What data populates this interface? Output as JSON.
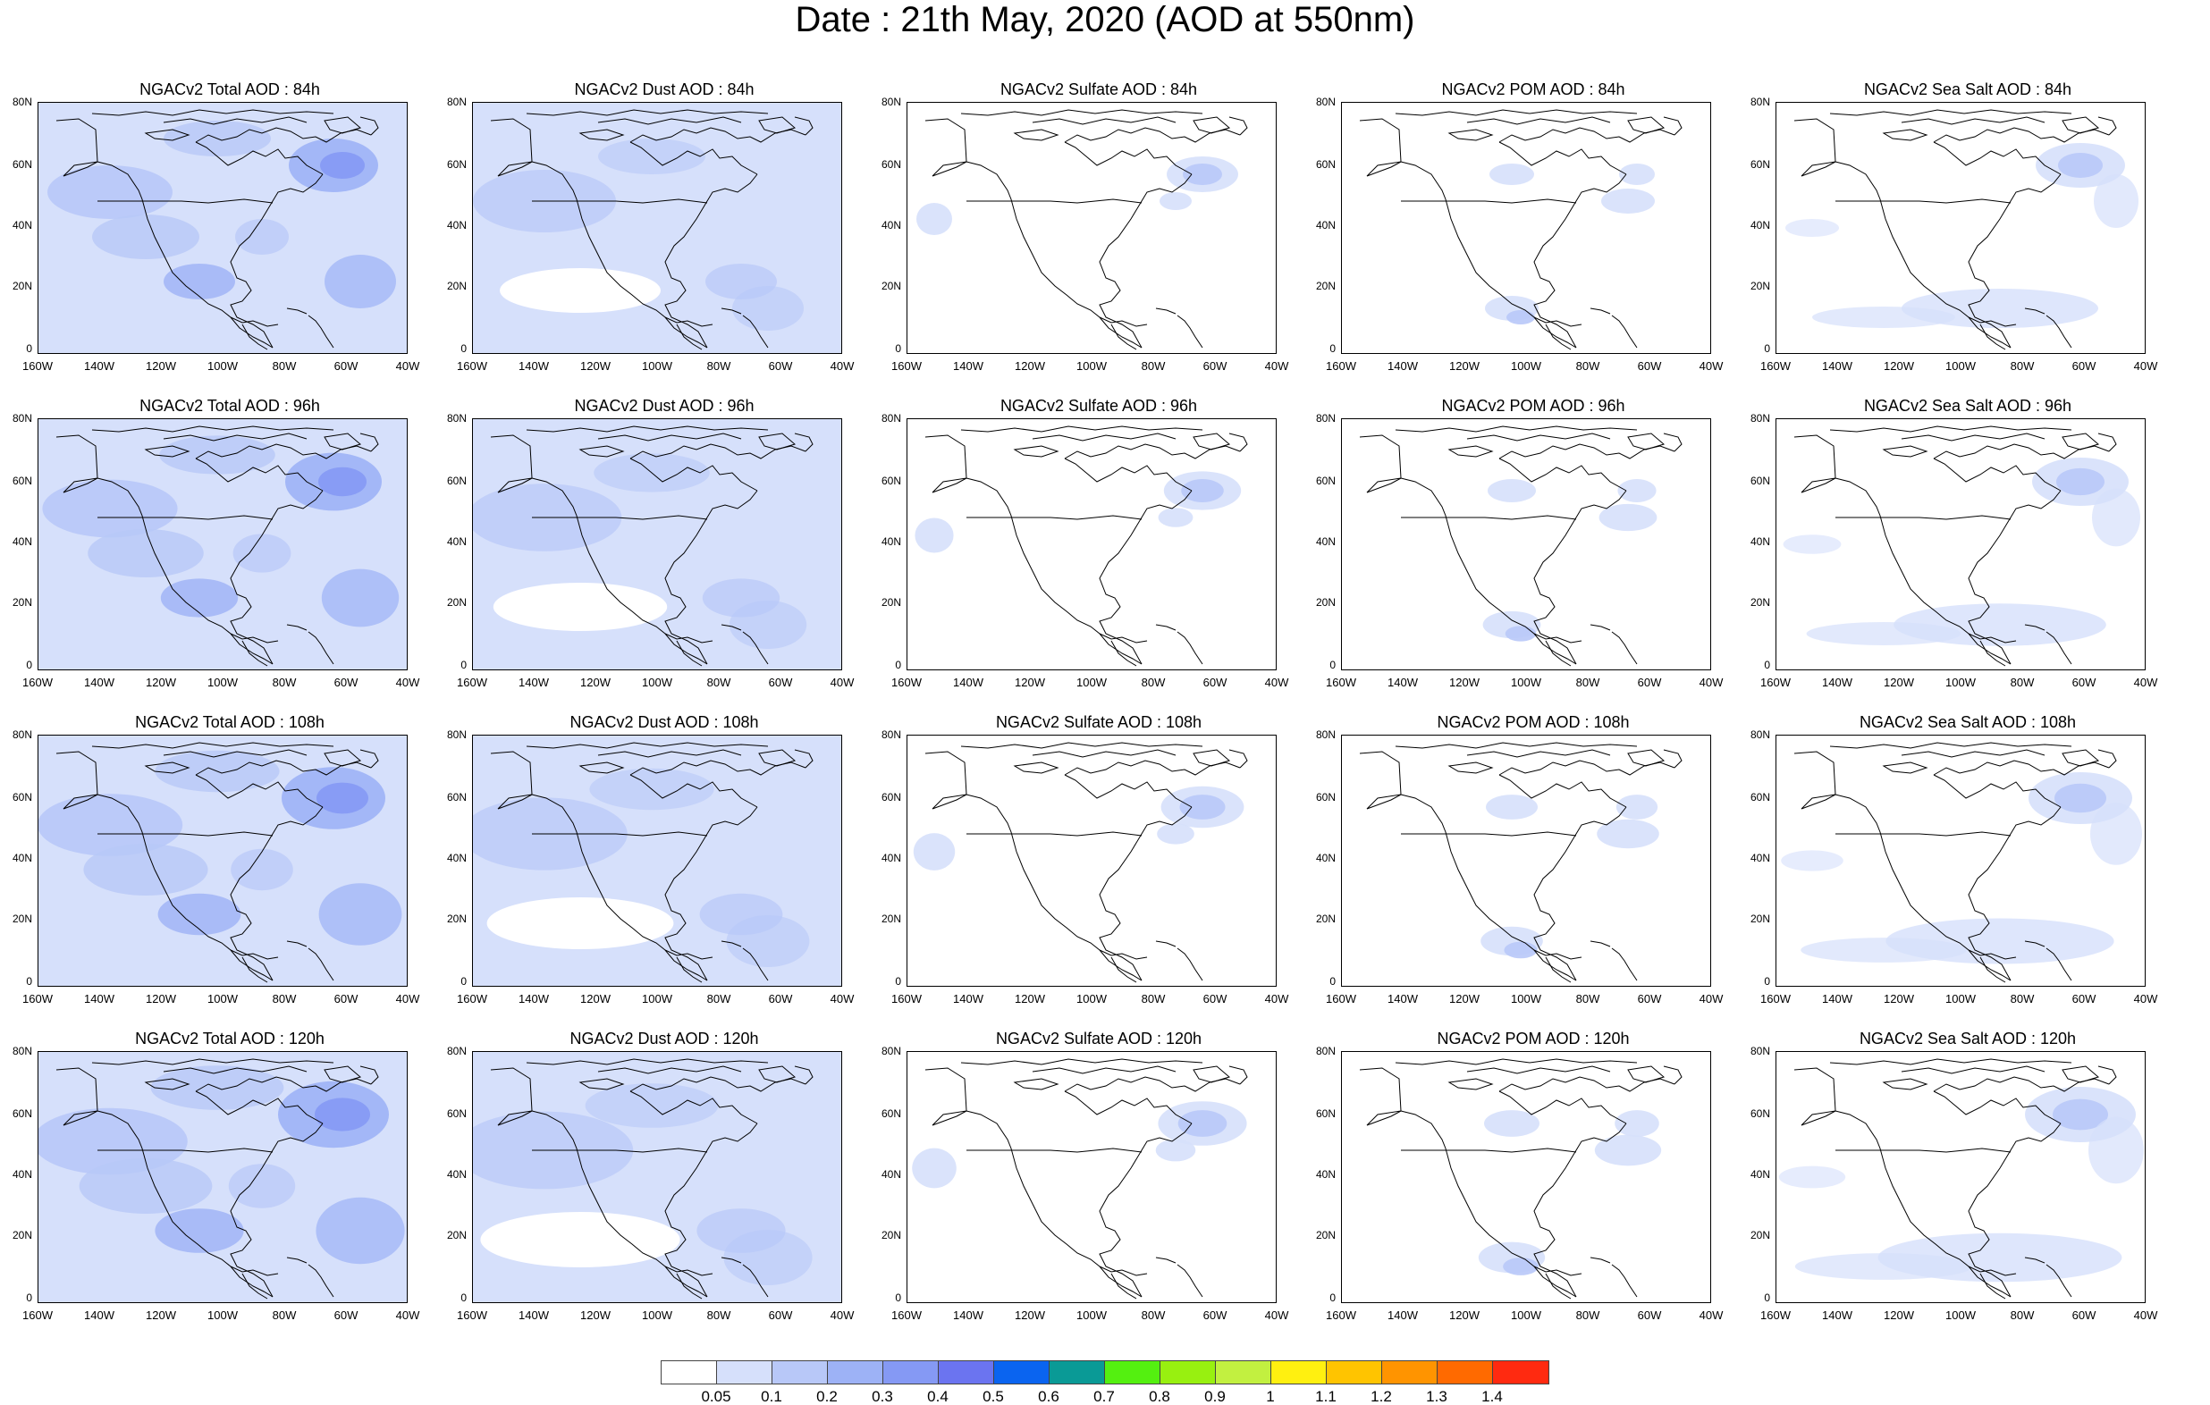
{
  "title": "Date : 21th May, 2020 (AOD at 550nm)",
  "lat_labels": [
    "80N",
    "60N",
    "40N",
    "20N",
    "0"
  ],
  "lon_labels": [
    "160W",
    "140W",
    "120W",
    "100W",
    "80W",
    "60W",
    "40W"
  ],
  "panels": [
    [
      "NGACv2 Total AOD : 84h",
      "NGACv2 Dust AOD : 84h",
      "NGACv2 Sulfate AOD : 84h",
      "NGACv2 POM AOD : 84h",
      "NGACv2 Sea Salt AOD : 84h"
    ],
    [
      "NGACv2 Total AOD : 96h",
      "NGACv2 Dust AOD : 96h",
      "NGACv2 Sulfate AOD : 96h",
      "NGACv2 POM AOD : 96h",
      "NGACv2 Sea Salt AOD : 96h"
    ],
    [
      "NGACv2 Total AOD : 108h",
      "NGACv2 Dust AOD : 108h",
      "NGACv2 Sulfate AOD : 108h",
      "NGACv2 POM AOD : 108h",
      "NGACv2 Sea Salt AOD : 108h"
    ],
    [
      "NGACv2 Total AOD : 120h",
      "NGACv2 Dust AOD : 120h",
      "NGACv2 Sulfate AOD : 120h",
      "NGACv2 POM AOD : 120h",
      "NGACv2 Sea Salt  AOD : 120h"
    ]
  ],
  "colorbar": {
    "labels": [
      "0.05",
      "0.1",
      "0.2",
      "0.3",
      "0.4",
      "0.5",
      "0.6",
      "0.7",
      "0.8",
      "0.9",
      "1",
      "1.1",
      "1.2",
      "1.3",
      "1.4"
    ],
    "colors": [
      "#ffffff",
      "#d6e0fb",
      "#b8c8f8",
      "#9db2f6",
      "#8599f4",
      "#6b74f0",
      "#0a64f0",
      "#0a9a96",
      "#54f010",
      "#98f010",
      "#c2f040",
      "#fff010",
      "#ffc400",
      "#ff9400",
      "#ff6a00",
      "#ff2a10"
    ]
  }
}
